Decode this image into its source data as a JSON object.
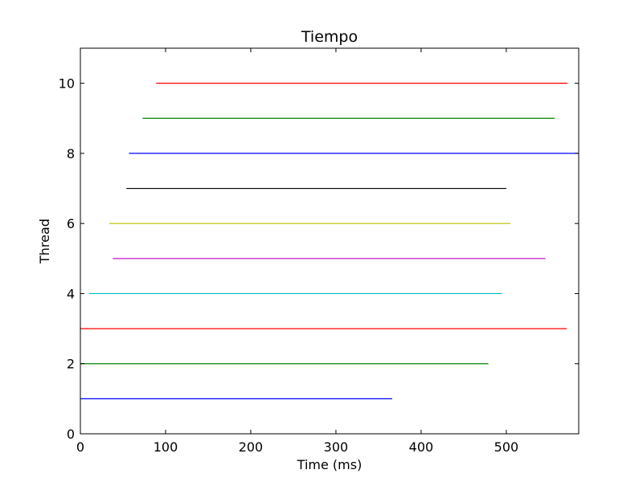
{
  "chart_data": {
    "type": "line",
    "title": "Tiempo",
    "xlabel": "Time (ms)",
    "ylabel": "Thread",
    "xlim": [
      0,
      585
    ],
    "ylim": [
      0,
      11
    ],
    "xticks": [
      0,
      100,
      200,
      300,
      400,
      500
    ],
    "yticks": [
      0,
      2,
      4,
      6,
      8,
      10
    ],
    "grid": false,
    "series": [
      {
        "thread": 1,
        "start": 0,
        "end": 366,
        "color": "#0000ff"
      },
      {
        "thread": 2,
        "start": 0,
        "end": 479,
        "color": "#008000"
      },
      {
        "thread": 3,
        "start": 0,
        "end": 571,
        "color": "#ff0000"
      },
      {
        "thread": 4,
        "start": 10,
        "end": 495,
        "color": "#00bfbf"
      },
      {
        "thread": 5,
        "start": 38,
        "end": 546,
        "color": "#bf00bf"
      },
      {
        "thread": 6,
        "start": 34,
        "end": 505,
        "color": "#bfbf00"
      },
      {
        "thread": 7,
        "start": 54,
        "end": 500,
        "color": "#000000"
      },
      {
        "thread": 8,
        "start": 57,
        "end": 585,
        "color": "#0000ff"
      },
      {
        "thread": 9,
        "start": 73,
        "end": 557,
        "color": "#008000"
      },
      {
        "thread": 10,
        "start": 89,
        "end": 572,
        "color": "#ff0000"
      }
    ]
  }
}
